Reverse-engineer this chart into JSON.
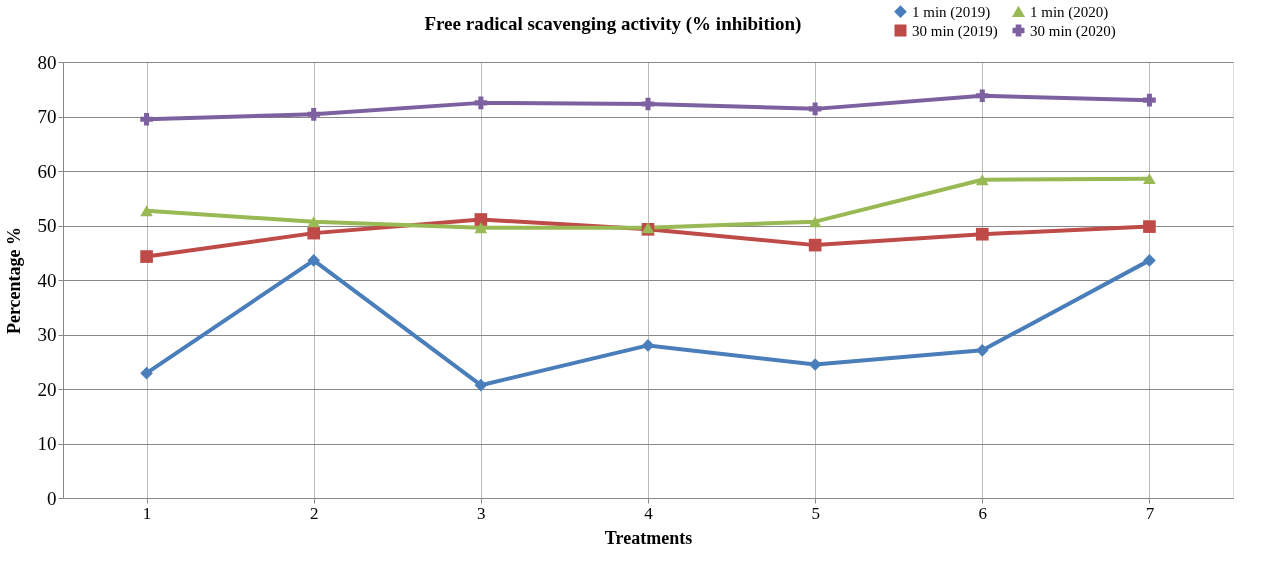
{
  "chart_data": {
    "type": "line",
    "title": "Free radical scavenging activity (% inhibition)",
    "xlabel": "Treatments",
    "ylabel": "Percentage %",
    "categories": [
      "1",
      "2",
      "3",
      "4",
      "5",
      "6",
      "7"
    ],
    "ylim": [
      0,
      80
    ],
    "yticks": [
      0,
      10,
      20,
      30,
      40,
      50,
      60,
      70,
      80
    ],
    "grid": true,
    "legend": "top right",
    "line_style": "solid",
    "series": [
      {
        "name": "1 min (2019)",
        "color": "#4a7ebb",
        "marker": "diamond",
        "values": [
          22.9,
          43.6,
          20.7,
          28.0,
          24.5,
          27.1,
          43.6
        ]
      },
      {
        "name": "30 min (2019)",
        "color": "#be4b48",
        "marker": "square",
        "values": [
          44.3,
          48.6,
          51.1,
          49.3,
          46.4,
          48.4,
          49.8
        ]
      },
      {
        "name": "1 min (2020)",
        "color": "#98b954",
        "marker": "triangle",
        "values": [
          52.7,
          50.7,
          49.6,
          49.6,
          50.7,
          58.4,
          58.6
        ]
      },
      {
        "name": "30 min (2020)",
        "color": "#7d60a0",
        "marker": "cross",
        "values": [
          69.5,
          70.4,
          72.5,
          72.3,
          71.4,
          73.8,
          73.0
        ]
      }
    ]
  }
}
